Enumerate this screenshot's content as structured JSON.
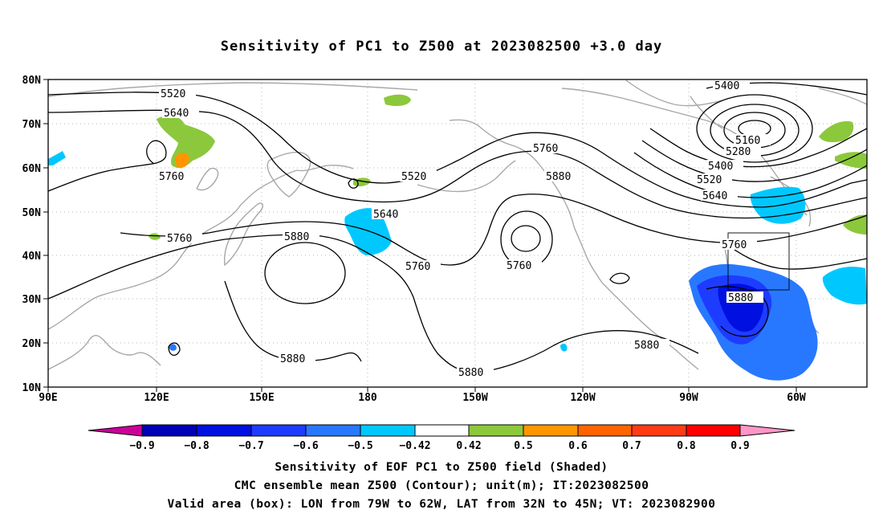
{
  "title": "Sensitivity of PC1 to Z500 at 2023082500 +3.0 day",
  "map": {
    "lat_labels": [
      "80N",
      "70N",
      "60N",
      "50N",
      "40N",
      "30N",
      "20N",
      "10N"
    ],
    "lon_labels": [
      "90E",
      "120E",
      "150E",
      "180",
      "150W",
      "120W",
      "90W",
      "60W"
    ],
    "contour_labels": {
      "c5520a": "5520",
      "c5640a": "5640",
      "c5760a": "5760",
      "c5760b": "5760",
      "c5880a": "5880",
      "c5520b": "5520",
      "c5640b": "5640",
      "c5760c": "5760",
      "c5880b": "5880",
      "c5760d": "5760",
      "c5760e": "5760",
      "c5880c": "5880",
      "c5880d": "5880",
      "c5880e": "5880",
      "c5400a": "5400",
      "c5160": "5160",
      "c5280": "5280",
      "c5400b": "5400",
      "c5520c": "5520",
      "c5640c": "5640",
      "c5760f": "5760",
      "c5880f": "5880"
    },
    "valid_box": {
      "lon_from": "79W",
      "lon_to": "62W",
      "lat_from": "32N",
      "lat_to": "45N"
    }
  },
  "colorbar": {
    "labels": [
      "−0.9",
      "−0.8",
      "−0.7",
      "−0.6",
      "−0.5",
      "−0.42",
      "0.42",
      "0.5",
      "0.6",
      "0.7",
      "0.8",
      "0.9"
    ],
    "colors": {
      "neg_end": "#cc0099",
      "neg09": "#0000b4",
      "neg08": "#0010e0",
      "neg07": "#1e3cff",
      "neg06": "#2878ff",
      "neg05": "#00c8ff",
      "neutral": "#ffffff",
      "pos05": "#8cc83c",
      "pos06": "#ff9600",
      "pos07": "#ff6400",
      "pos08": "#ff3c14",
      "pos09": "#ff0000",
      "pos_end": "#ff96c8"
    }
  },
  "captions": {
    "line1": "Sensitivity of EOF PC1 to Z500 field (Shaded)",
    "line2": "CMC ensemble mean Z500 (Contour); unit(m); IT:2023082500",
    "line3": "Valid area (box): LON from 79W to 62W, LAT from 32N to 45N; VT: 2023082900"
  }
}
